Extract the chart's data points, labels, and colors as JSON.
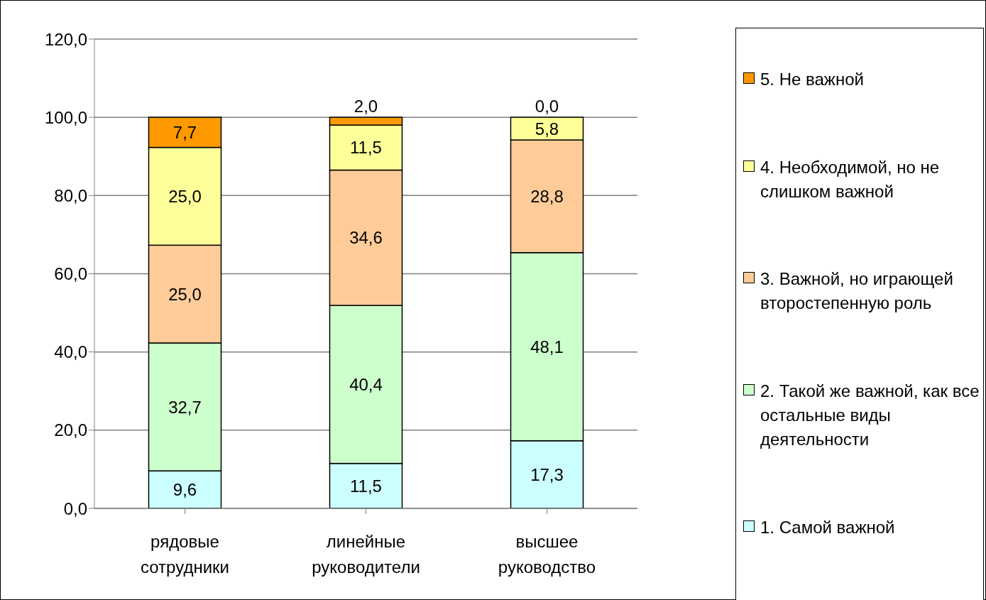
{
  "chart_data": {
    "type": "bar",
    "stacked": true,
    "categories": [
      "рядовые сотрудники",
      "линейные руководители",
      "высшее руководство"
    ],
    "series": [
      {
        "name": "1. Самой важной",
        "color": "#ccffff",
        "values": [
          9.6,
          11.5,
          17.3
        ],
        "value_labels": [
          "9,6",
          "11,5",
          "17,3"
        ]
      },
      {
        "name": "2. Такой же важной, как все остальные виды деятельности",
        "color": "#ccffcc",
        "values": [
          32.7,
          40.4,
          48.1
        ],
        "value_labels": [
          "32,7",
          "40,4",
          "48,1"
        ]
      },
      {
        "name": "3. Важной, но играющей второстепенную роль",
        "color": "#ffcc99",
        "values": [
          25.0,
          34.6,
          28.8
        ],
        "value_labels": [
          "25,0",
          "34,6",
          "28,8"
        ]
      },
      {
        "name": "4. Необходимой, но не слишком важной",
        "color": "#ffff99",
        "values": [
          25.0,
          11.5,
          5.8
        ],
        "value_labels": [
          "25,0",
          "11,5",
          "5,8"
        ]
      },
      {
        "name": "5. Не важной",
        "color": "#ff9900",
        "values": [
          7.7,
          2.0,
          0.0
        ],
        "value_labels": [
          "7,7",
          "2,0",
          "0,0"
        ]
      }
    ],
    "ylim": [
      0,
      120
    ],
    "yticks": [
      {
        "value": 0,
        "label": "0,0"
      },
      {
        "value": 20,
        "label": "20,0"
      },
      {
        "value": 40,
        "label": "40,0"
      },
      {
        "value": 60,
        "label": "60,0"
      },
      {
        "value": 80,
        "label": "80,0"
      },
      {
        "value": 100,
        "label": "100,0"
      },
      {
        "value": 120,
        "label": "120,0"
      }
    ],
    "grid": "y",
    "legend": "right"
  }
}
